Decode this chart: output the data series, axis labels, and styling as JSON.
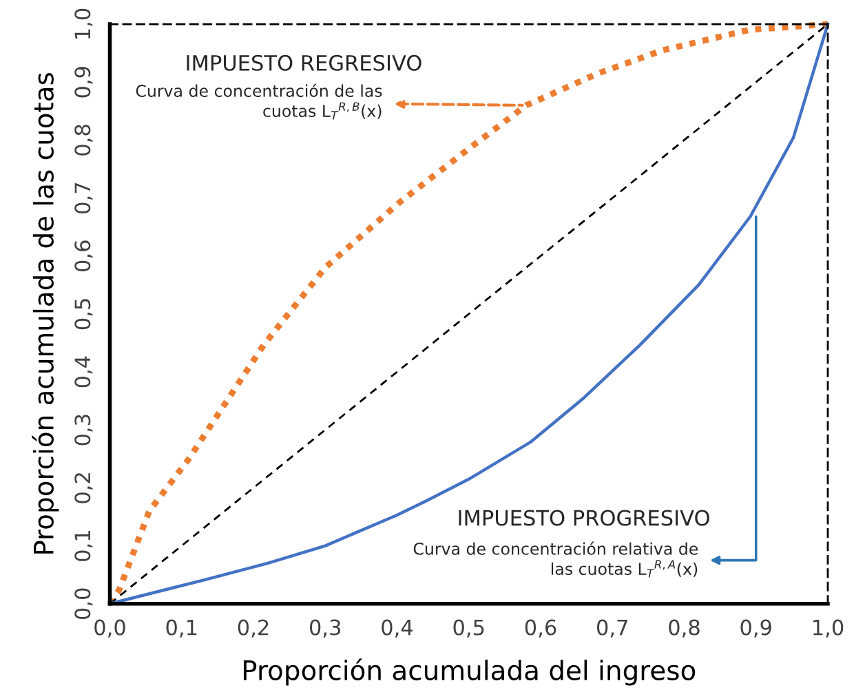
{
  "chart_data": {
    "type": "line",
    "xlabel": "Proporción acumulada del ingreso",
    "ylabel": "Proporción acumulada de las cuotas",
    "xlim": [
      0,
      1
    ],
    "ylim": [
      0,
      1
    ],
    "xticks": [
      {
        "value": 0,
        "label": "0,0"
      },
      {
        "value": 0.1,
        "label": "0,1"
      },
      {
        "value": 0.2,
        "label": "0,2"
      },
      {
        "value": 0.3,
        "label": "0,3"
      },
      {
        "value": 0.4,
        "label": "0,4"
      },
      {
        "value": 0.5,
        "label": "0,5"
      },
      {
        "value": 0.6,
        "label": "0,6"
      },
      {
        "value": 0.7,
        "label": "0,7"
      },
      {
        "value": 0.8,
        "label": "0,8"
      },
      {
        "value": 0.9,
        "label": "0,9"
      },
      {
        "value": 1,
        "label": "1,0"
      }
    ],
    "yticks": [
      {
        "value": 0,
        "label": "0,0"
      },
      {
        "value": 0.1,
        "label": "0,1"
      },
      {
        "value": 0.2,
        "label": "0,2"
      },
      {
        "value": 0.3,
        "label": "0,3"
      },
      {
        "value": 0.4,
        "label": "0,4"
      },
      {
        "value": 0.5,
        "label": "0,5"
      },
      {
        "value": 0.6,
        "label": "0,6"
      },
      {
        "value": 0.7,
        "label": "0,7"
      },
      {
        "value": 0.8,
        "label": "0,8"
      },
      {
        "value": 0.9,
        "label": "0,9"
      },
      {
        "value": 1,
        "label": "1,0"
      }
    ],
    "grid": false,
    "legend": false,
    "marker": "none",
    "series": [
      {
        "color": "#ed7d31",
        "line_style": "dotted",
        "x": [
          0,
          0.013,
          0.055,
          0.11,
          0.214,
          0.3,
          0.403,
          0.5,
          0.58,
          0.68,
          0.77,
          0.89,
          1
        ],
        "values": [
          0,
          0.024,
          0.16,
          0.25,
          0.446,
          0.58,
          0.692,
          0.785,
          0.86,
          0.915,
          0.955,
          0.99,
          1
        ]
      },
      {
        "color": "#000000",
        "line_style": "dashed",
        "x": [
          0,
          1
        ],
        "values": [
          0,
          1
        ]
      },
      {
        "color": "#4472c4",
        "line_style": "solid",
        "x": [
          0,
          0.128,
          0.22,
          0.3,
          0.4,
          0.44,
          0.5,
          0.586,
          0.66,
          0.738,
          0.82,
          0.892,
          0.952,
          1
        ],
        "values": [
          0,
          0.04,
          0.07,
          0.1,
          0.153,
          0.177,
          0.215,
          0.279,
          0.355,
          0.446,
          0.55,
          0.668,
          0.804,
          1
        ]
      }
    ],
    "annotations": [
      "IMPUESTO REGRESIVO",
      {
        "text": "Curva de concentración de las\ncuotas L$_{T}$$^{R,B}$(x)",
        "x": 0.58,
        "y": 0.86
      },
      "IMPUESTO PROGRESIVO",
      {
        "text": "Curva de concentración relativa de\nlas cuotas L$_{T}$$^{R,A}$(x)",
        "x": 0.9,
        "y": 0.668
      }
    ]
  }
}
